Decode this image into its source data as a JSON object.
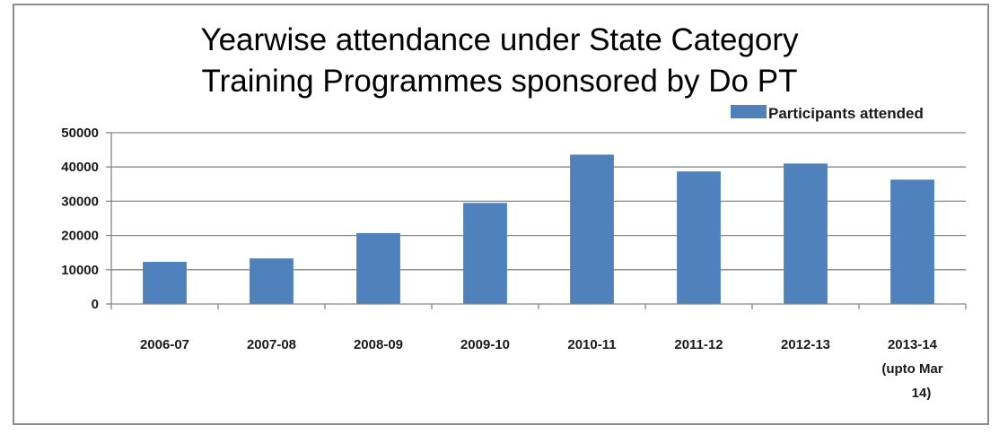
{
  "chart_data": {
    "type": "bar",
    "title_lines": [
      "Yearwise attendance under State Category",
      "Training Programmes sponsored by Do PT"
    ],
    "categories": [
      [
        "2006-07"
      ],
      [
        "2007-08"
      ],
      [
        "2008-09"
      ],
      [
        "2009-10"
      ],
      [
        "2010-11"
      ],
      [
        "2011-12"
      ],
      [
        "2012-13"
      ],
      [
        "2013-14",
        "(upto Mar",
        "14)"
      ]
    ],
    "series": [
      {
        "name": "Participants attended",
        "values": [
          12300,
          13300,
          20700,
          29500,
          43600,
          38700,
          41000,
          36300
        ]
      }
    ],
    "yticks": [
      "0",
      "10000",
      "20000",
      "30000",
      "40000",
      "50000"
    ],
    "ylim": [
      0,
      50000
    ],
    "grid": true,
    "legend_position": "top-right",
    "colors": {
      "bar": "#4f81bd",
      "grid": "#868686",
      "axis": "#868686"
    }
  }
}
